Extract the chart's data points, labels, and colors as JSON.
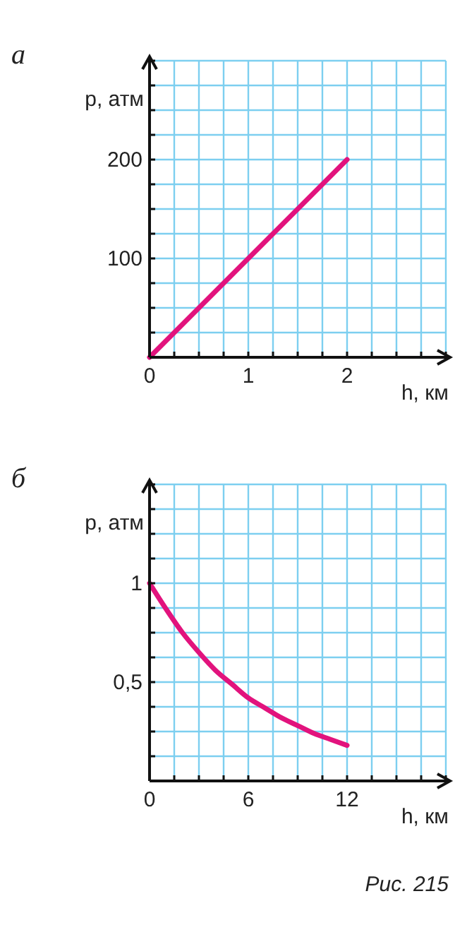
{
  "chart_data": [
    {
      "type": "line",
      "title": "а",
      "xlabel": "h, км",
      "ylabel": "p, атм",
      "x": [
        0,
        2
      ],
      "series": [
        {
          "color": "#e2137d",
          "values": [
            0,
            200
          ]
        }
      ],
      "xlim": [
        0,
        3
      ],
      "ylim": [
        0,
        300
      ],
      "xticks": [
        0,
        {
          "value": 0.25,
          "label": null
        },
        {
          "value": 0.5,
          "label": null
        },
        {
          "value": 0.75,
          "label": null
        },
        1,
        {
          "value": 1.25,
          "label": null
        },
        {
          "value": 1.5,
          "label": null
        },
        {
          "value": 1.75,
          "label": null
        },
        2,
        {
          "value": 2.25,
          "label": null
        },
        {
          "value": 2.5,
          "label": null
        },
        {
          "value": 2.75,
          "label": null
        },
        {
          "value": 3,
          "label": null
        }
      ],
      "yticks": [
        {
          "value": 0,
          "label": null
        },
        {
          "value": 25,
          "label": null
        },
        {
          "value": 50,
          "label": null
        },
        {
          "value": 75,
          "label": null
        },
        100,
        {
          "value": 125,
          "label": null
        },
        {
          "value": 150,
          "label": null
        },
        {
          "value": 175,
          "label": null
        },
        200,
        {
          "value": 225,
          "label": null
        },
        {
          "value": 250,
          "label": null
        },
        {
          "value": 275,
          "label": null
        },
        {
          "value": 300,
          "label": null
        }
      ],
      "grid": true
    },
    {
      "type": "line",
      "title": "б",
      "xlabel": "h, км",
      "ylabel": "p, атм",
      "x": [
        0,
        1,
        2,
        3,
        4,
        5,
        6,
        7,
        8,
        9,
        10,
        11,
        12
      ],
      "series": [
        {
          "color": "#e2137d",
          "values": [
            1,
            0.87,
            0.75,
            0.65,
            0.56,
            0.49,
            0.42,
            0.37,
            0.32,
            0.28,
            0.24,
            0.21,
            0.18
          ]
        }
      ],
      "xlim": [
        0,
        18
      ],
      "ylim": [
        0,
        1.5
      ],
      "xticks": [
        0,
        {
          "value": 1.5,
          "label": null
        },
        {
          "value": 3,
          "label": null
        },
        {
          "value": 4.5,
          "label": null
        },
        6,
        {
          "value": 7.5,
          "label": null
        },
        {
          "value": 9,
          "label": null
        },
        {
          "value": 10.5,
          "label": null
        },
        12,
        {
          "value": 13.5,
          "label": null
        },
        {
          "value": 15,
          "label": null
        },
        {
          "value": 16.5,
          "label": null
        },
        {
          "value": 18,
          "label": null
        }
      ],
      "yticks": [
        {
          "value": 0,
          "label": null
        },
        {
          "value": 0.125,
          "label": null
        },
        {
          "value": 0.25,
          "label": null
        },
        {
          "value": 0.375,
          "label": null
        },
        {
          "value": 0.5,
          "label": "0,5"
        },
        {
          "value": 0.625,
          "label": null
        },
        {
          "value": 0.75,
          "label": null
        },
        {
          "value": 0.875,
          "label": null
        },
        1,
        {
          "value": 1.125,
          "label": null
        },
        {
          "value": 1.25,
          "label": null
        },
        {
          "value": 1.375,
          "label": null
        },
        {
          "value": 1.5,
          "label": null
        }
      ],
      "grid": true,
      "annotations": [
        "Рис. 215"
      ]
    }
  ]
}
